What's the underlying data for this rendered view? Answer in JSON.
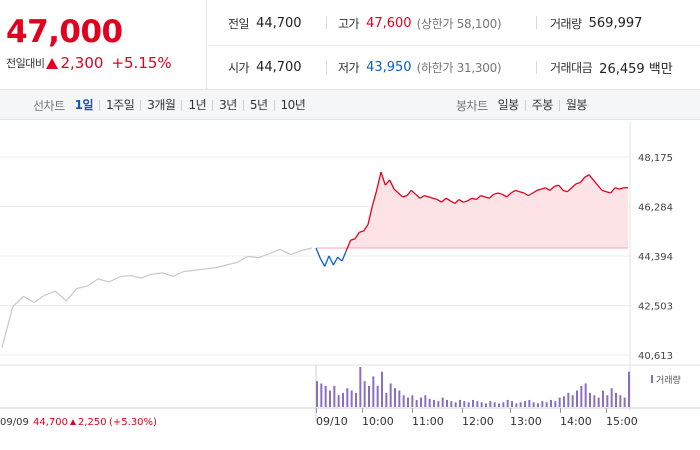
{
  "quote": {
    "price": "47,000",
    "change_label": "전일대비",
    "change_value": "2,300",
    "change_percent": "+5.15%",
    "colors": {
      "up": "#e1001e",
      "down": "#0a5fcf"
    }
  },
  "stats": {
    "prev_close": {
      "label": "전일",
      "value": "44,700"
    },
    "open": {
      "label": "시가",
      "value": "44,700"
    },
    "high": {
      "label": "고가",
      "value": "47,600",
      "sub": "(상한가 58,100)"
    },
    "low": {
      "label": "저가",
      "value": "43,950",
      "sub": "(하한가 31,300)"
    },
    "volume": {
      "label": "거래량",
      "value": "569,997"
    },
    "turnover": {
      "label": "거래대금",
      "value": "26,459 백만"
    }
  },
  "toolbar": {
    "line_chart_label": "선차트",
    "periods": [
      "1일",
      "1주일",
      "3개월",
      "1년",
      "3년",
      "5년",
      "10년"
    ],
    "active_period": "1일",
    "candle_chart_label": "봉차트",
    "candle_periods": [
      "일봉",
      "주봉",
      "월봉"
    ]
  },
  "chart_data": {
    "type": "line",
    "y_ticks": [
      "48,175",
      "46,284",
      "44,394",
      "42,503",
      "40,613"
    ],
    "ylim": [
      40613,
      48175
    ],
    "x_ticks": [
      "09/10",
      "10:00",
      "11:00",
      "12:00",
      "13:00",
      "14:00",
      "15:00"
    ],
    "reference_value": 44700,
    "previous_day": {
      "label": "09/09",
      "close": "44,700",
      "change": "2,250",
      "change_percent": "(+5.30%)",
      "values": [
        40900,
        42450,
        42850,
        42620,
        42900,
        43050,
        42680,
        43150,
        43250,
        43520,
        43400,
        43600,
        43650,
        43550,
        43700,
        43750,
        43620,
        43800,
        43850,
        43900,
        43950,
        44050,
        44150,
        44380,
        44330,
        44480,
        44650,
        44450,
        44600,
        44700
      ]
    },
    "today_prices": [
      44700,
      44300,
      44000,
      44400,
      44050,
      44350,
      44200,
      44600,
      45000,
      45050,
      45300,
      45350,
      45600,
      46300,
      46900,
      47600,
      47100,
      47300,
      46950,
      46800,
      46650,
      46700,
      46900,
      46750,
      46600,
      46700,
      46650,
      46600,
      46550,
      46450,
      46600,
      46500,
      46400,
      46550,
      46450,
      46500,
      46600,
      46550,
      46700,
      46650,
      46600,
      46750,
      46800,
      46750,
      46650,
      46800,
      46900,
      46850,
      46800,
      46700,
      46800,
      46900,
      46950,
      47000,
      46900,
      47050,
      47100,
      46900,
      46850,
      47000,
      47150,
      47200,
      47400,
      47500,
      47300,
      47100,
      46900,
      46850,
      46800,
      47000,
      46950,
      47000,
      47000
    ],
    "volume_label": "거래량",
    "today_volume": [
      22,
      20,
      18,
      14,
      18,
      10,
      12,
      16,
      14,
      12,
      34,
      22,
      18,
      26,
      18,
      30,
      12,
      20,
      16,
      14,
      10,
      8,
      10,
      6,
      8,
      10,
      7,
      6,
      5,
      8,
      6,
      5,
      4,
      6,
      5,
      4,
      6,
      5,
      4,
      3,
      5,
      4,
      3,
      4,
      6,
      5,
      3,
      4,
      5,
      6,
      4,
      3,
      5,
      4,
      6,
      5,
      8,
      9,
      12,
      10,
      14,
      18,
      20,
      12,
      10,
      8,
      14,
      10,
      16,
      12,
      10,
      8,
      30
    ]
  }
}
